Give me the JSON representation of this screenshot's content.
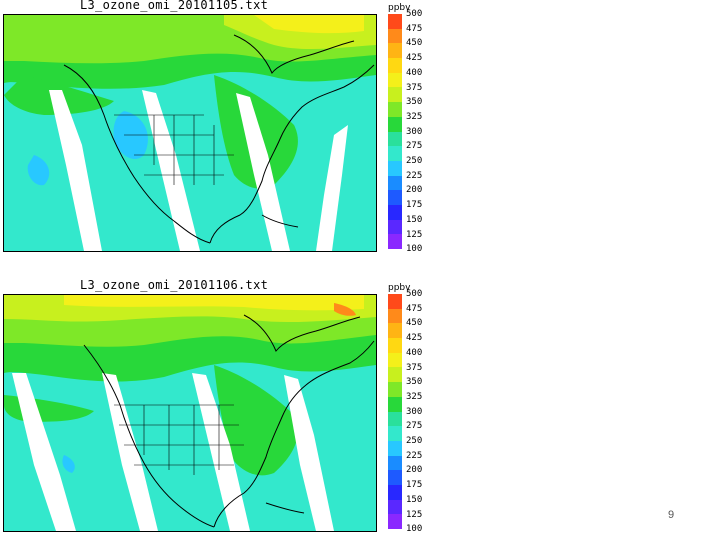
{
  "maps": [
    {
      "title": "L3_ozone_omi_20101105.txt",
      "legend_unit": "ppbv",
      "legend_values": [
        "500",
        "475",
        "450",
        "425",
        "400",
        "375",
        "350",
        "325",
        "300",
        "275",
        "250",
        "225",
        "200",
        "175",
        "150",
        "125",
        "100"
      ]
    },
    {
      "title": "L3_ozone_omi_20101106.txt",
      "legend_unit": "ppbv",
      "legend_values": [
        "500",
        "475",
        "450",
        "425",
        "400",
        "375",
        "350",
        "325",
        "300",
        "275",
        "250",
        "225",
        "200",
        "175",
        "150",
        "125",
        "100"
      ]
    }
  ],
  "colorbar_colors": [
    "#ff4a1a",
    "#ff8a1a",
    "#ffb414",
    "#ffd812",
    "#f4f01a",
    "#c8f01e",
    "#7ee828",
    "#28d83a",
    "#2ae09c",
    "#33e8cc",
    "#28c8ff",
    "#1a8cff",
    "#1e5aff",
    "#2828ff",
    "#5a28ff",
    "#8a28ff"
  ],
  "page_number": "9"
}
